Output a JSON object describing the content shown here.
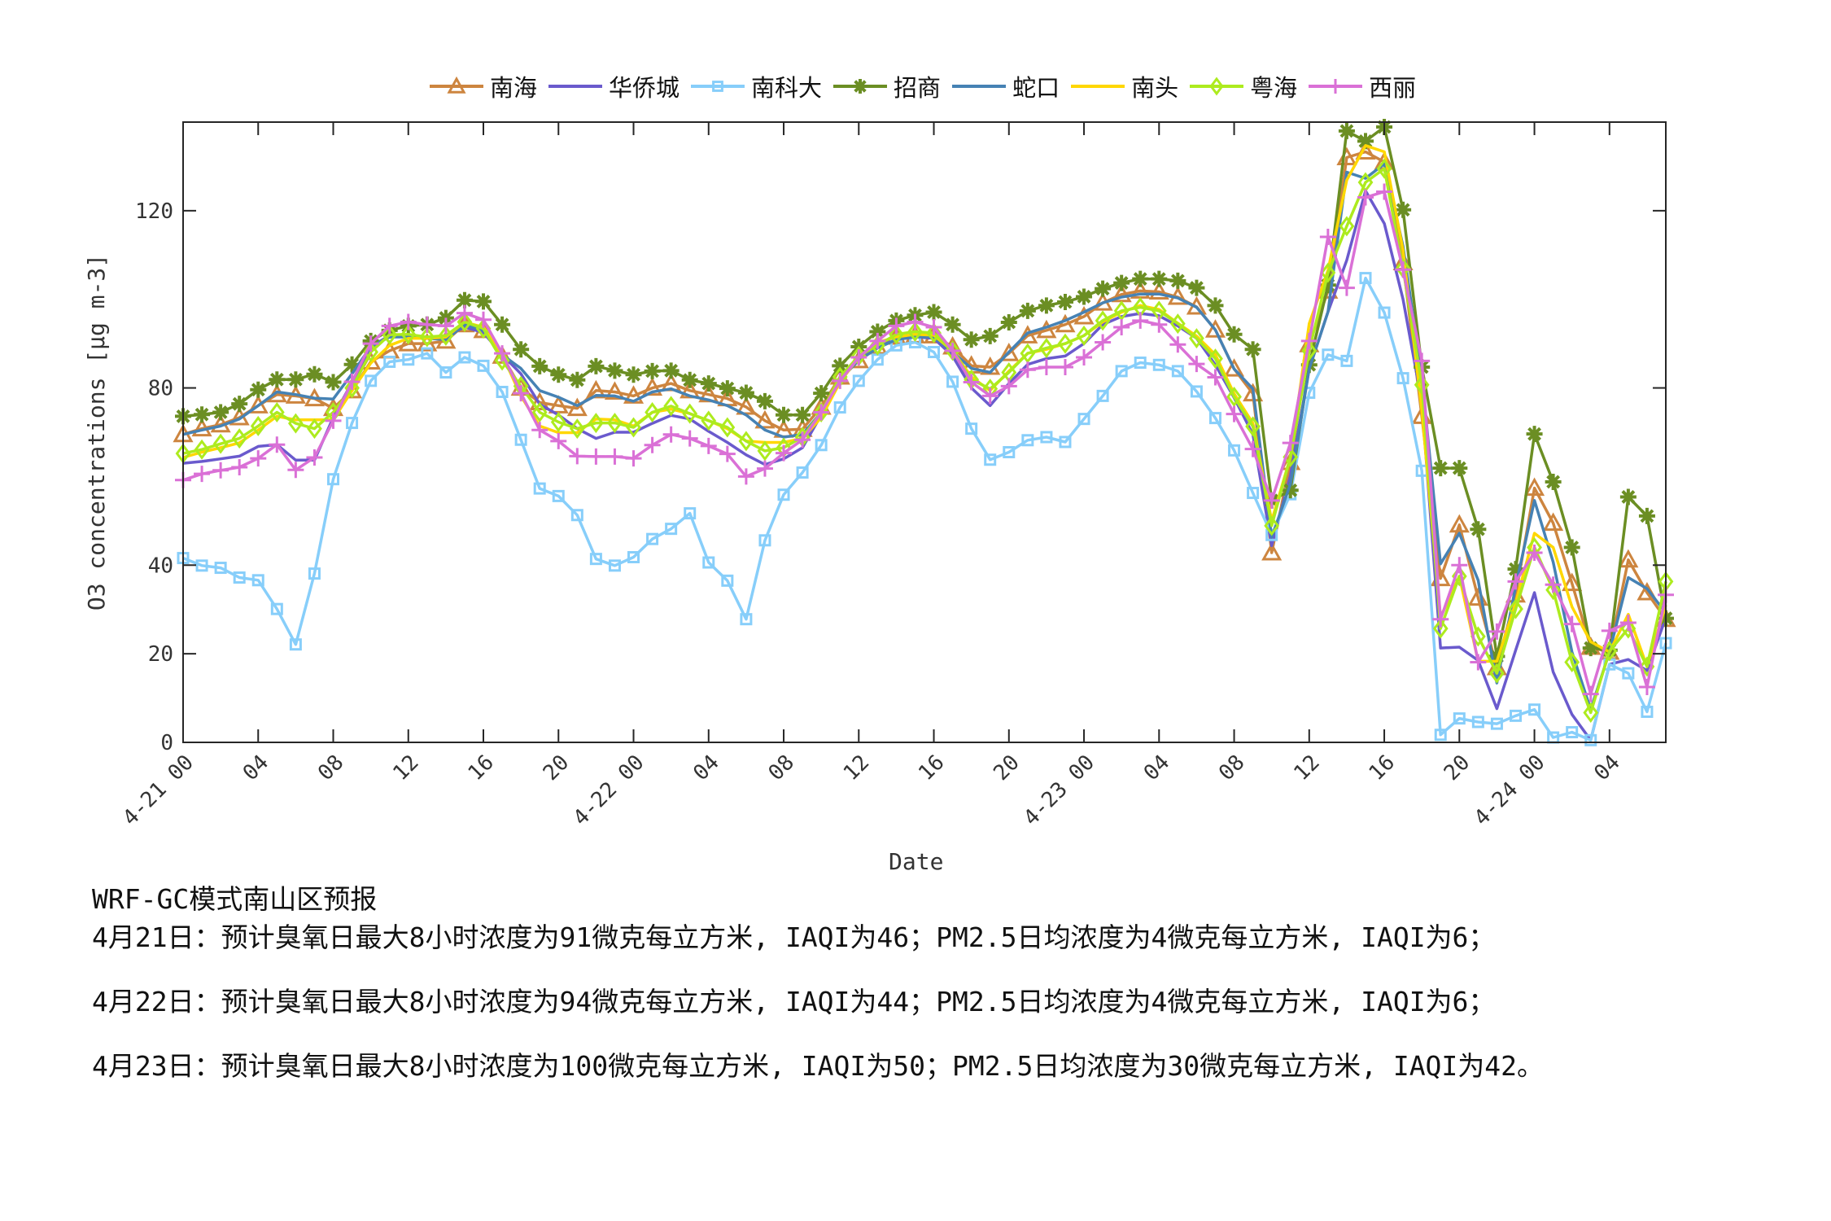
{
  "chart_data": {
    "type": "line",
    "title": "",
    "xlabel": "Date",
    "ylabel": "O3 concentrations [μg m-3]",
    "ylim": [
      0,
      140
    ],
    "xlim": [
      0,
      79
    ],
    "x_unit": "hours since 4-21 00",
    "grid": false,
    "legend_position": "top",
    "yticks": [
      0,
      20,
      40,
      80,
      120
    ],
    "xticks": [
      {
        "x": 0,
        "label": "4-21 00"
      },
      {
        "x": 4,
        "label": "04"
      },
      {
        "x": 8,
        "label": "08"
      },
      {
        "x": 12,
        "label": "12"
      },
      {
        "x": 16,
        "label": "16"
      },
      {
        "x": 20,
        "label": "20"
      },
      {
        "x": 24,
        "label": "4-22 00"
      },
      {
        "x": 28,
        "label": "04"
      },
      {
        "x": 32,
        "label": "08"
      },
      {
        "x": 36,
        "label": "12"
      },
      {
        "x": 40,
        "label": "16"
      },
      {
        "x": 44,
        "label": "20"
      },
      {
        "x": 48,
        "label": "4-23 00"
      },
      {
        "x": 52,
        "label": "04"
      },
      {
        "x": 56,
        "label": "08"
      },
      {
        "x": 60,
        "label": "12"
      },
      {
        "x": 64,
        "label": "16"
      },
      {
        "x": 68,
        "label": "20"
      },
      {
        "x": 72,
        "label": "4-24 00"
      },
      {
        "x": 76,
        "label": "04"
      }
    ],
    "series": [
      {
        "name": "南海",
        "color": "#cd853f",
        "marker": "triangle",
        "values": [
          69.5,
          70.8,
          71.7,
          73.3,
          76.0,
          78.5,
          78.2,
          77.6,
          75.4,
          79.4,
          85.9,
          88.4,
          90,
          90,
          90.6,
          94.3,
          93,
          87.2,
          80,
          76.7,
          76,
          75.4,
          79.4,
          79.1,
          78.2,
          80,
          81,
          79.4,
          78.5,
          77.6,
          75.7,
          72.6,
          70.5,
          70.7,
          75.7,
          82.5,
          86.2,
          89.3,
          91.5,
          91.8,
          91.8,
          89.3,
          85,
          84.7,
          87.8,
          91.8,
          93,
          94.3,
          96.1,
          99.2,
          101.1,
          101.9,
          101.7,
          100.5,
          98.3,
          93.1,
          84.3,
          78.7,
          42.8,
          63.2,
          89.8,
          101.9,
          132,
          133.3,
          131,
          108.3,
          73.6,
          37,
          49.1,
          32.6,
          16.9,
          33.3,
          57.4,
          49.5,
          35.9,
          21.5,
          20.4,
          41.2,
          33.8,
          27.8
        ]
      },
      {
        "name": "华侨城",
        "color": "#6a5acd",
        "marker": "none",
        "values": [
          63,
          63.4,
          64,
          64.6,
          66.8,
          67.2,
          63.7,
          63.7,
          73.3,
          81.3,
          89.3,
          91.8,
          91.8,
          91.2,
          91.8,
          93.7,
          92.5,
          87.5,
          83.2,
          76.3,
          73.9,
          70.8,
          68.6,
          70,
          70,
          72,
          73.8,
          73,
          70.2,
          67.7,
          64.9,
          62.7,
          64,
          66.5,
          73.9,
          81.9,
          86.6,
          89.3,
          90.9,
          91.5,
          91.2,
          87.2,
          80,
          76,
          81,
          85.3,
          86.6,
          87.2,
          90,
          94.3,
          96.1,
          96.8,
          96.3,
          94,
          91.2,
          85.2,
          77.8,
          69.5,
          44.4,
          60.2,
          84.3,
          97.2,
          108.8,
          124.5,
          117.1,
          100,
          76.8,
          21.3,
          21.5,
          18.5,
          7.6,
          20.8,
          33.8,
          15.9,
          6.3,
          0.5,
          17.6,
          18.7,
          16.2,
          28.2
        ]
      },
      {
        "name": "南科大",
        "color": "#87cefa",
        "marker": "square",
        "values": [
          41.6,
          39.9,
          39.4,
          37.2,
          36.6,
          30.1,
          22.1,
          38.1,
          59.4,
          72.1,
          81.6,
          85.9,
          86.4,
          87.8,
          83.5,
          86.9,
          85,
          79.1,
          68.3,
          57.3,
          55.6,
          51.3,
          41.4,
          39.9,
          41.8,
          45.9,
          48.2,
          51.7,
          40.6,
          36.5,
          27.8,
          45.6,
          55.9,
          60.9,
          67.1,
          75.6,
          81.6,
          86.4,
          89.6,
          90.3,
          88.1,
          81.4,
          70.8,
          63.8,
          65.5,
          68.2,
          68.9,
          67.8,
          73,
          78.2,
          83.8,
          85.7,
          85.2,
          83.8,
          79.2,
          73.2,
          65.9,
          56.3,
          46.8,
          56,
          78.9,
          87.5,
          86.1,
          104.8,
          97,
          82.2,
          61.3,
          1.7,
          5.4,
          4.6,
          4.2,
          6,
          7.4,
          1.1,
          2.3,
          0.5,
          17.6,
          15.6,
          6.9,
          22.4
        ]
      },
      {
        "name": "招商",
        "color": "#6b8e23",
        "marker": "star",
        "values": [
          73.6,
          74,
          74.5,
          76.4,
          79.6,
          81.9,
          81.9,
          83.1,
          81.3,
          85.3,
          90.6,
          93,
          94,
          94.3,
          95.8,
          99.8,
          99.5,
          94.3,
          88.7,
          84.9,
          83,
          81.8,
          84.9,
          83.9,
          83,
          83.8,
          83.9,
          81.8,
          81,
          79.9,
          78.9,
          77,
          73.9,
          73.9,
          78.8,
          85,
          89.3,
          92.7,
          95.2,
          96.4,
          97.1,
          94.3,
          90.9,
          91.7,
          94.8,
          97.4,
          98.6,
          99.4,
          100.6,
          102.4,
          103.7,
          104.6,
          104.6,
          104.2,
          102.6,
          98.6,
          92.1,
          88.7,
          54.6,
          56.9,
          85.2,
          103.2,
          138,
          135.7,
          138.9,
          120.2,
          84.7,
          61.9,
          61.9,
          48.1,
          19.4,
          39.1,
          69.6,
          58.8,
          44,
          21.3,
          20.8,
          55.4,
          51.1,
          28
        ]
      },
      {
        "name": "蛇口",
        "color": "#4682b4",
        "marker": "none",
        "values": [
          69.5,
          70.5,
          71.4,
          73,
          76,
          79.1,
          78.5,
          77.7,
          77.5,
          83.2,
          89.3,
          91.5,
          91.5,
          91.2,
          90.9,
          94.3,
          93,
          87.5,
          84.4,
          79.4,
          77.9,
          76,
          78.3,
          78.2,
          77,
          79.1,
          79.8,
          78.2,
          77.3,
          76,
          73.9,
          70.5,
          68.9,
          69.5,
          74.5,
          81.9,
          86.2,
          89,
          90.9,
          91.5,
          91.5,
          88.1,
          84.4,
          83.5,
          88.1,
          92.4,
          93.7,
          95.2,
          97.1,
          99.2,
          100.5,
          101.2,
          101.2,
          100.3,
          98.2,
          93.1,
          84.3,
          79.8,
          46.3,
          58.3,
          84.3,
          97.2,
          128.7,
          127.3,
          130.6,
          112,
          82.4,
          40.3,
          47.2,
          36.6,
          13.4,
          35.2,
          54.6,
          40.7,
          20.4,
          7.4,
          20.4,
          37.2,
          34.7,
          29.2
        ]
      },
      {
        "name": "南头",
        "color": "#ffd700",
        "marker": "none",
        "values": [
          64.3,
          65.5,
          66.5,
          67.6,
          70.5,
          73.6,
          72.8,
          72.8,
          72.8,
          79.4,
          85.6,
          89.6,
          91.2,
          91.2,
          91.5,
          94.9,
          93.7,
          87.5,
          78.2,
          71.4,
          69.9,
          69.9,
          73,
          72.8,
          71.4,
          74.5,
          75.2,
          74.2,
          72.6,
          70.8,
          68,
          67.7,
          67.7,
          68.6,
          73.3,
          81.3,
          86.9,
          90.3,
          91.5,
          92.1,
          91.9,
          88.4,
          82.5,
          79.4,
          83.8,
          87.8,
          88.7,
          90,
          91.8,
          94.9,
          97.1,
          98.6,
          97.7,
          94.6,
          91.7,
          87.5,
          78.7,
          72,
          50,
          64.4,
          94.5,
          106.5,
          126.9,
          134.7,
          133.3,
          111.1,
          75,
          28.2,
          37.5,
          18.3,
          18.3,
          31.5,
          47.2,
          44,
          30.6,
          22.7,
          20.4,
          28.9,
          17.1,
          31
        ]
      },
      {
        "name": "粤海",
        "color": "#adeb1e",
        "marker": "diamond",
        "values": [
          65.2,
          66.1,
          67.4,
          68.6,
          71.4,
          74.5,
          72,
          70.8,
          74.5,
          80,
          88.1,
          92,
          92.1,
          91.5,
          91.8,
          94.9,
          93.4,
          86.2,
          80.4,
          74.5,
          72.3,
          70.8,
          72.1,
          72.1,
          71.1,
          74.5,
          75.9,
          74.2,
          72.6,
          71.1,
          68,
          65.8,
          66.5,
          68.9,
          74.5,
          82.5,
          87.2,
          89.6,
          92.1,
          92.7,
          92.4,
          88.4,
          81.9,
          79.8,
          83.5,
          87.8,
          89,
          90,
          91.8,
          95.2,
          97.4,
          98.2,
          97.4,
          94.5,
          91.2,
          86.6,
          78,
          71.3,
          48.9,
          64.4,
          88.4,
          106,
          116.5,
          126.4,
          129.5,
          107,
          80.7,
          25.7,
          37.5,
          23.9,
          15.6,
          30.1,
          44,
          34.4,
          18.1,
          6.7,
          20.6,
          25.7,
          17.1,
          36.3
        ]
      },
      {
        "name": "西丽",
        "color": "#da70d6",
        "marker": "plus",
        "values": [
          59.2,
          60.6,
          61.4,
          62.1,
          64.1,
          67.2,
          61.5,
          64.3,
          72.6,
          81.4,
          90,
          94,
          94.9,
          94.3,
          94,
          96.9,
          95.4,
          87.8,
          78.8,
          70.5,
          68,
          64.6,
          64.5,
          64.5,
          64.1,
          67.1,
          69.5,
          68.6,
          66.9,
          65.1,
          60,
          61.8,
          65.3,
          68.3,
          74.5,
          81.6,
          86.9,
          90.6,
          94,
          94.9,
          93.7,
          88.4,
          81.3,
          78.2,
          80.4,
          84.1,
          84.7,
          84.7,
          86.9,
          90.3,
          93.7,
          95.2,
          94.3,
          89.8,
          85.4,
          82.4,
          74.1,
          66.2,
          54.6,
          67.6,
          90.6,
          114.1,
          102.6,
          123,
          124.3,
          106.7,
          86.1,
          27.8,
          40,
          18.1,
          25,
          36.3,
          42.8,
          35.6,
          26.7,
          10.9,
          25.2,
          27,
          12.5,
          33.3
        ]
      }
    ]
  },
  "notes": {
    "title": "WRF-GC模式南山区预报",
    "lines": [
      "4月21日：预计臭氧日最大8小时浓度为91微克每立方米, IAQI为46；PM2.5日均浓度为4微克每立方米, IAQI为6；",
      "4月22日：预计臭氧日最大8小时浓度为94微克每立方米, IAQI为44；PM2.5日均浓度为4微克每立方米, IAQI为6；",
      "4月23日：预计臭氧日最大8小时浓度为100微克每立方米, IAQI为50；PM2.5日均浓度为30微克每立方米, IAQI为42。"
    ]
  }
}
